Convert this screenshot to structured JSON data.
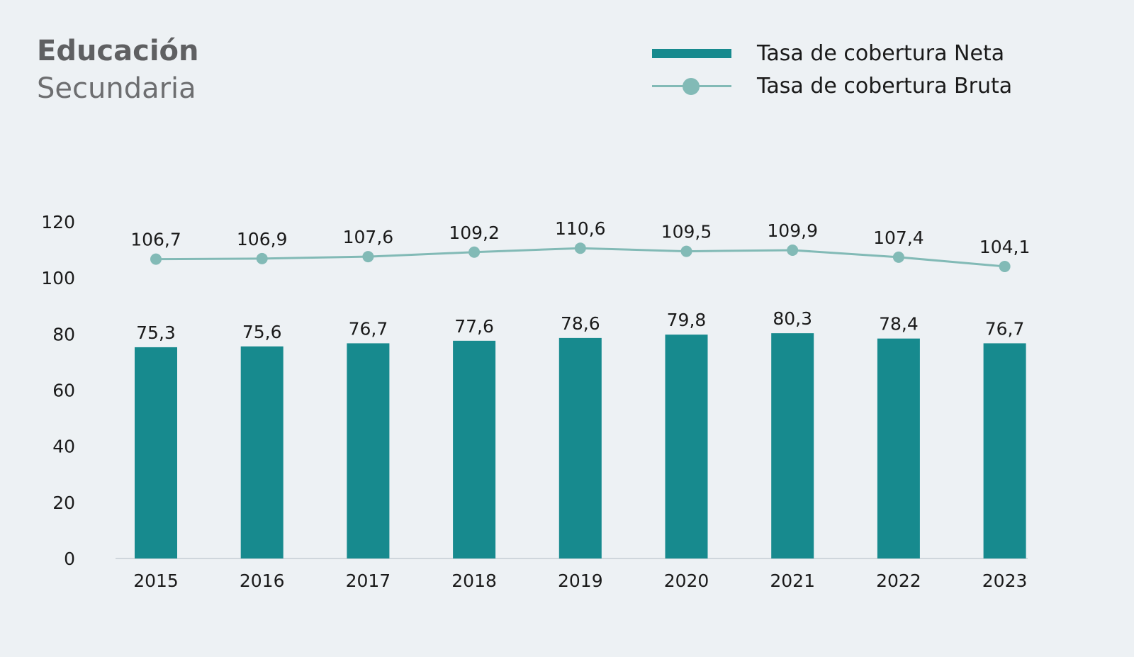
{
  "header": {
    "title": "Educación",
    "subtitle": "Secundaria"
  },
  "legend": {
    "neta_label": "Tasa de cobertura Neta",
    "bruta_label": "Tasa de cobertura Bruta"
  },
  "colors": {
    "bar": "#178a8e",
    "line": "#82bab6",
    "axis": "#cfd6dc"
  },
  "chart_data": {
    "type": "bar",
    "categories": [
      "2015",
      "2016",
      "2017",
      "2018",
      "2019",
      "2020",
      "2021",
      "2022",
      "2023"
    ],
    "series": [
      {
        "name": "Tasa de cobertura Neta",
        "type": "bar",
        "values": [
          75.3,
          75.6,
          76.7,
          77.6,
          78.6,
          79.8,
          80.3,
          78.4,
          76.7
        ],
        "labels": [
          "75,3",
          "75,6",
          "76,7",
          "77,6",
          "78,6",
          "79,8",
          "80,3",
          "78,4",
          "76,7"
        ]
      },
      {
        "name": "Tasa de cobertura Bruta",
        "type": "line",
        "values": [
          106.7,
          106.9,
          107.6,
          109.2,
          110.6,
          109.5,
          109.9,
          107.4,
          104.1
        ],
        "labels": [
          "106,7",
          "106,9",
          "107,6",
          "109,2",
          "110,6",
          "109,5",
          "109,9",
          "107,4",
          "104,1"
        ]
      }
    ],
    "yticks": [
      "0",
      "20",
      "40",
      "60",
      "80",
      "100",
      "120"
    ],
    "ylim": [
      0,
      120
    ],
    "grid": false,
    "legend_position": "top-right",
    "xlabel": "",
    "ylabel": ""
  }
}
